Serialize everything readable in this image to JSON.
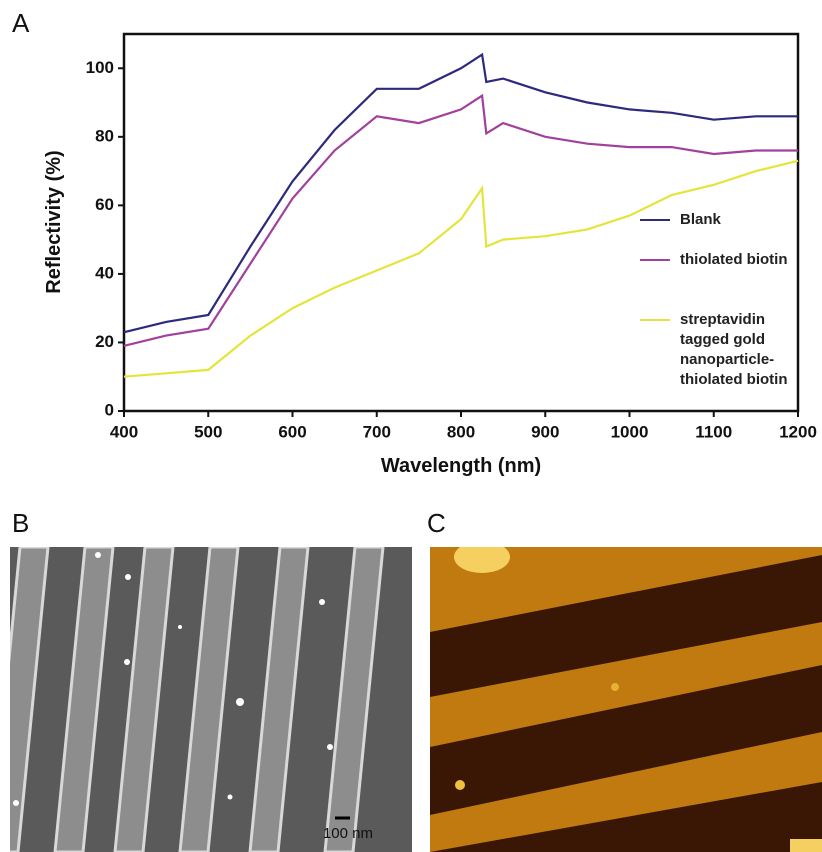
{
  "chart_data": {
    "type": "line",
    "xlabel": "Wavelength (nm)",
    "ylabel": "Reflectivity (%)",
    "x": [
      400,
      450,
      500,
      550,
      600,
      650,
      700,
      750,
      800,
      825,
      830,
      850,
      900,
      950,
      1000,
      1050,
      1100,
      1150,
      1200
    ],
    "series": [
      {
        "name": "Blank",
        "color": "#2d2a7c",
        "values": [
          23,
          26,
          28,
          48,
          67,
          82,
          94,
          94,
          100,
          104,
          96,
          97,
          93,
          90,
          88,
          87,
          85,
          86,
          86
        ]
      },
      {
        "name": "thiolated biotin",
        "color": "#a2419c",
        "values": [
          19,
          22,
          24,
          43,
          62,
          76,
          86,
          84,
          88,
          92,
          81,
          84,
          80,
          78,
          77,
          77,
          75,
          76,
          76
        ]
      },
      {
        "name": "streptavidin tagged gold nanoparticle-thiolated biotin",
        "color": "#e4e43c",
        "values": [
          10,
          11,
          12,
          22,
          30,
          36,
          41,
          46,
          56,
          65,
          48,
          50,
          51,
          53,
          57,
          63,
          66,
          70,
          73
        ]
      }
    ],
    "xlim": [
      400,
      1200
    ],
    "ylim": [
      0,
      110
    ],
    "xticks": [
      400,
      500,
      600,
      700,
      800,
      900,
      1000,
      1100,
      1200
    ],
    "yticks": [
      0,
      20,
      40,
      60,
      80,
      100
    ]
  },
  "panel_labels": [
    "A",
    "B",
    "C"
  ],
  "scale_bar": "100 nm"
}
